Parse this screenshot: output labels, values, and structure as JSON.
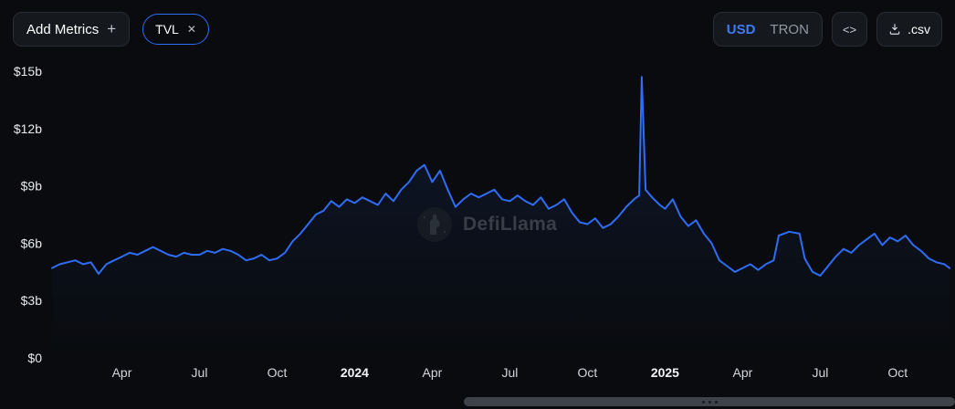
{
  "header": {
    "add_metrics": {
      "label": "Add Metrics",
      "plus_icon": "+"
    },
    "metric_pill": {
      "label": "TVL",
      "close_icon": "✕"
    },
    "denomination_toggle": {
      "options": [
        {
          "label": "USD",
          "active": true
        },
        {
          "label": "TRON",
          "active": false
        }
      ]
    },
    "embed_button": {
      "icon": "<>"
    },
    "csv_button": {
      "label": ".csv",
      "icon": "download-file"
    }
  },
  "watermark": {
    "text": "DefiLlama",
    "icon": "llama-moon-logo"
  },
  "colors": {
    "background": "#090b0e",
    "line_blue": "#2f6df6",
    "active_toggle_blue": "#3f7bf7",
    "pill_border_blue": "#2f6df6",
    "axis_label": "#e8ebef",
    "scrollbar_thumb": "#3e434a"
  },
  "chart_data": {
    "type": "line",
    "title": "TVL",
    "denomination": "USD",
    "y_unit": "USD (billions)",
    "x_unit": "months since Jan 2023",
    "grid": false,
    "legend": false,
    "xlim": [
      0.3,
      35
    ],
    "ylim": [
      0,
      15
    ],
    "yticks": {
      "values": [
        0,
        3,
        6,
        9,
        12,
        15
      ],
      "labels": [
        "$0",
        "$3b",
        "$6b",
        "$9b",
        "$12b",
        "$15b"
      ]
    },
    "xticks": [
      {
        "pos": 3,
        "label": "Apr",
        "year": false
      },
      {
        "pos": 6,
        "label": "Jul",
        "year": false
      },
      {
        "pos": 9,
        "label": "Oct",
        "year": false
      },
      {
        "pos": 12,
        "label": "2024",
        "year": true
      },
      {
        "pos": 15,
        "label": "Apr",
        "year": false
      },
      {
        "pos": 18,
        "label": "Jul",
        "year": false
      },
      {
        "pos": 21,
        "label": "Oct",
        "year": false
      },
      {
        "pos": 24,
        "label": "2025",
        "year": true
      },
      {
        "pos": 27,
        "label": "Apr",
        "year": false
      },
      {
        "pos": 30,
        "label": "Jul",
        "year": false
      },
      {
        "pos": 33,
        "label": "Oct",
        "year": false
      }
    ],
    "series": [
      {
        "name": "TVL",
        "color": "#2f6df6",
        "points": [
          [
            0.3,
            4.7
          ],
          [
            0.6,
            4.9
          ],
          [
            0.9,
            5.0
          ],
          [
            1.2,
            5.1
          ],
          [
            1.5,
            4.9
          ],
          [
            1.8,
            5.0
          ],
          [
            2.1,
            4.4
          ],
          [
            2.4,
            4.9
          ],
          [
            2.7,
            5.1
          ],
          [
            3.0,
            5.3
          ],
          [
            3.3,
            5.5
          ],
          [
            3.6,
            5.4
          ],
          [
            3.9,
            5.6
          ],
          [
            4.2,
            5.8
          ],
          [
            4.5,
            5.6
          ],
          [
            4.8,
            5.4
          ],
          [
            5.1,
            5.3
          ],
          [
            5.4,
            5.5
          ],
          [
            5.7,
            5.4
          ],
          [
            6.0,
            5.4
          ],
          [
            6.3,
            5.6
          ],
          [
            6.6,
            5.5
          ],
          [
            6.9,
            5.7
          ],
          [
            7.2,
            5.6
          ],
          [
            7.5,
            5.4
          ],
          [
            7.8,
            5.1
          ],
          [
            8.1,
            5.2
          ],
          [
            8.4,
            5.4
          ],
          [
            8.7,
            5.1
          ],
          [
            9.0,
            5.2
          ],
          [
            9.3,
            5.5
          ],
          [
            9.6,
            6.1
          ],
          [
            9.9,
            6.5
          ],
          [
            10.2,
            7.0
          ],
          [
            10.5,
            7.5
          ],
          [
            10.8,
            7.7
          ],
          [
            11.1,
            8.2
          ],
          [
            11.4,
            7.9
          ],
          [
            11.7,
            8.3
          ],
          [
            12.0,
            8.1
          ],
          [
            12.3,
            8.4
          ],
          [
            12.6,
            8.2
          ],
          [
            12.9,
            8.0
          ],
          [
            13.2,
            8.6
          ],
          [
            13.5,
            8.2
          ],
          [
            13.8,
            8.8
          ],
          [
            14.1,
            9.2
          ],
          [
            14.4,
            9.8
          ],
          [
            14.7,
            10.1
          ],
          [
            15.0,
            9.2
          ],
          [
            15.3,
            9.8
          ],
          [
            15.6,
            8.8
          ],
          [
            15.9,
            7.9
          ],
          [
            16.2,
            8.3
          ],
          [
            16.5,
            8.6
          ],
          [
            16.8,
            8.4
          ],
          [
            17.1,
            8.6
          ],
          [
            17.4,
            8.8
          ],
          [
            17.7,
            8.3
          ],
          [
            18.0,
            8.2
          ],
          [
            18.3,
            8.5
          ],
          [
            18.6,
            8.2
          ],
          [
            18.9,
            8.0
          ],
          [
            19.2,
            8.4
          ],
          [
            19.5,
            7.8
          ],
          [
            19.8,
            8.0
          ],
          [
            20.1,
            8.3
          ],
          [
            20.4,
            7.6
          ],
          [
            20.7,
            7.1
          ],
          [
            21.0,
            7.0
          ],
          [
            21.3,
            7.3
          ],
          [
            21.6,
            6.8
          ],
          [
            21.9,
            7.0
          ],
          [
            22.2,
            7.4
          ],
          [
            22.5,
            7.9
          ],
          [
            22.8,
            8.3
          ],
          [
            23.0,
            8.5
          ],
          [
            23.1,
            14.7
          ],
          [
            23.25,
            8.8
          ],
          [
            23.5,
            8.4
          ],
          [
            23.8,
            8.0
          ],
          [
            24.0,
            7.8
          ],
          [
            24.3,
            8.3
          ],
          [
            24.6,
            7.4
          ],
          [
            24.9,
            6.9
          ],
          [
            25.2,
            7.2
          ],
          [
            25.5,
            6.5
          ],
          [
            25.8,
            6.0
          ],
          [
            26.1,
            5.1
          ],
          [
            26.4,
            4.8
          ],
          [
            26.7,
            4.5
          ],
          [
            27.0,
            4.7
          ],
          [
            27.3,
            4.9
          ],
          [
            27.6,
            4.6
          ],
          [
            27.9,
            4.9
          ],
          [
            28.2,
            5.1
          ],
          [
            28.4,
            6.4
          ],
          [
            28.8,
            6.6
          ],
          [
            29.2,
            6.5
          ],
          [
            29.4,
            5.2
          ],
          [
            29.7,
            4.5
          ],
          [
            30.0,
            4.3
          ],
          [
            30.3,
            4.8
          ],
          [
            30.6,
            5.3
          ],
          [
            30.9,
            5.7
          ],
          [
            31.2,
            5.5
          ],
          [
            31.5,
            5.9
          ],
          [
            31.8,
            6.2
          ],
          [
            32.1,
            6.5
          ],
          [
            32.4,
            5.9
          ],
          [
            32.7,
            6.3
          ],
          [
            33.0,
            6.1
          ],
          [
            33.3,
            6.4
          ],
          [
            33.6,
            5.9
          ],
          [
            33.9,
            5.6
          ],
          [
            34.2,
            5.2
          ],
          [
            34.5,
            5.0
          ],
          [
            34.8,
            4.9
          ],
          [
            35.0,
            4.7
          ]
        ]
      }
    ]
  }
}
